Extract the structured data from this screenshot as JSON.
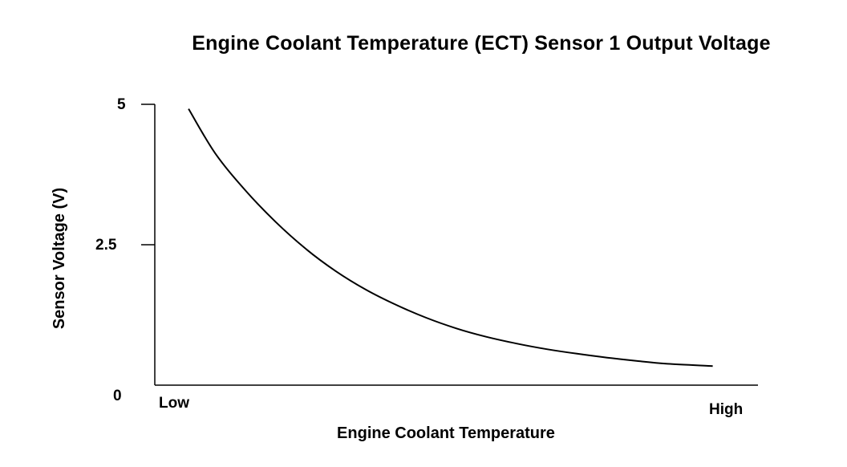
{
  "chart_data": {
    "type": "line",
    "title": "Engine Coolant Temperature (ECT) Sensor 1 Output Voltage",
    "xlabel": "Engine Coolant Temperature",
    "ylabel": "Sensor Voltage (V)",
    "x_tick_labels": [
      "Low",
      "High"
    ],
    "y_ticks": [
      {
        "value": 0,
        "label": "0"
      },
      {
        "value": 2.5,
        "label": "2.5"
      },
      {
        "value": 5,
        "label": "5"
      }
    ],
    "ylim": [
      0,
      5
    ],
    "xlim": [
      0,
      1
    ],
    "grid": false,
    "series": [
      {
        "x": [
          0.056,
          0.1,
          0.15,
          0.2,
          0.25,
          0.3,
          0.35,
          0.4,
          0.45,
          0.5,
          0.55,
          0.6,
          0.65,
          0.7,
          0.75,
          0.8,
          0.85,
          0.925
        ],
        "y": [
          4.92,
          4.13,
          3.47,
          2.91,
          2.43,
          2.03,
          1.7,
          1.43,
          1.2,
          1.01,
          0.86,
          0.74,
          0.64,
          0.56,
          0.49,
          0.43,
          0.38,
          0.34
        ]
      }
    ]
  }
}
